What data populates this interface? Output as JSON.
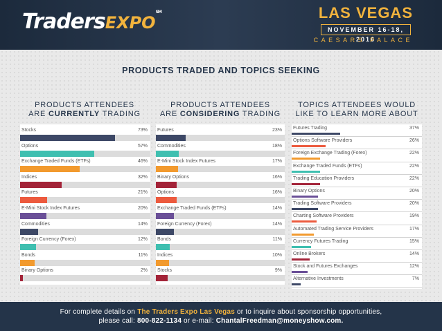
{
  "header": {
    "logo_part1": "Traders",
    "logo_part2": "EXPO",
    "logo_mark": "SM",
    "city": "LAS VEGAS",
    "dates": "NOVEMBER 16-18, 2016",
    "venue": "CAESARS PALACE"
  },
  "title": "PRODUCTS TRADED AND TOPICS SEEKING",
  "colors": {
    "navy": "#3d4866",
    "teal": "#3fbfb0",
    "orange": "#f29a2e",
    "red": "#a32338",
    "coral": "#ec5a3e",
    "purple": "#6a4f97"
  },
  "chart_data": [
    {
      "type": "bar",
      "orientation": "horizontal",
      "title_line1": "PRODUCTS ATTENDEES",
      "title_pre": "ARE ",
      "title_bold": "CURRENTLY",
      "title_post": " TRADING",
      "xlim": [
        0,
        100
      ],
      "categories": [
        "Stocks",
        "Options",
        "Exchange Traded Funds (ETFs)",
        "Indices",
        "Futures",
        "E-Mini Stock Index Futures",
        "Commodities",
        "Foreign Currency (Forex)",
        "Bonds",
        "Binary Options"
      ],
      "values": [
        73,
        57,
        46,
        32,
        21,
        20,
        14,
        12,
        11,
        2
      ],
      "labels": [
        "73%",
        "57%",
        "46%",
        "32%",
        "21%",
        "20%",
        "14%",
        "12%",
        "11%",
        "2%"
      ],
      "colors": [
        "#3d4866",
        "#3fbfb0",
        "#f29a2e",
        "#a32338",
        "#ec5a3e",
        "#6a4f97",
        "#3d4866",
        "#3fbfb0",
        "#f29a2e",
        "#a32338"
      ]
    },
    {
      "type": "bar",
      "orientation": "horizontal",
      "title_line1": "PRODUCTS ATTENDEES",
      "title_pre": "ARE ",
      "title_bold": "CONSIDERING",
      "title_post": " TRADING",
      "xlim": [
        0,
        100
      ],
      "categories": [
        "Futures",
        "Commodities",
        "E-Mini Stock Index Futures",
        "Binary Options",
        "Options",
        "Exchange Traded Funds (ETFs)",
        "Foreign Currency (Forex)",
        "Bonds",
        "Indices",
        "Stocks"
      ],
      "values": [
        23,
        18,
        17,
        16,
        16,
        14,
        14,
        11,
        10,
        9
      ],
      "labels": [
        "23%",
        "18%",
        "17%",
        "16%",
        "16%",
        "14%",
        "14%",
        "11%",
        "10%",
        "9%"
      ],
      "colors": [
        "#3d4866",
        "#3fbfb0",
        "#f29a2e",
        "#a32338",
        "#ec5a3e",
        "#6a4f97",
        "#3d4866",
        "#3fbfb0",
        "#f29a2e",
        "#a32338"
      ]
    },
    {
      "type": "bar",
      "orientation": "horizontal",
      "title_line1": "TOPICS ATTENDEES WOULD",
      "title_line2": "LIKE TO LEARN MORE ABOUT",
      "xlim": [
        0,
        100
      ],
      "categories": [
        "Futures Trading",
        "Options Software Providers",
        "Foreign Exchange Trading (Forex)",
        "Exchange Traded Funds (ETFs)",
        "Trading Education Providers",
        "Binary Options",
        "Trading Software Providers",
        "Charting Software Providers",
        "Automated Trading Service Providers",
        "Currency Futures Trading",
        "Online Brokers",
        "Stock and Futures Exchanges",
        "Alternative Investments"
      ],
      "values": [
        37,
        26,
        22,
        22,
        22,
        20,
        20,
        19,
        17,
        15,
        14,
        12,
        7
      ],
      "labels": [
        "37%",
        "26%",
        "22%",
        "22%",
        "22%",
        "20%",
        "20%",
        "19%",
        "17%",
        "15%",
        "14%",
        "12%",
        "7%"
      ],
      "colors": [
        "#3d4866",
        "#ec5a3e",
        "#f29a2e",
        "#3fbfb0",
        "#a32338",
        "#6a4f97",
        "#3d4866",
        "#ec5a3e",
        "#f29a2e",
        "#3fbfb0",
        "#a32338",
        "#6a4f97",
        "#3d4866"
      ]
    }
  ],
  "footer": {
    "line1_pre": "For complete details on ",
    "line1_highlight": "The Traders Expo Las Vegas",
    "line1_post": " or to inquire about sponsorship opportunities,",
    "line2_pre": "please call: ",
    "phone": "800-822-1134",
    "line2_mid": " or e-mail: ",
    "email": "ChantalFreedman@moneyshow.com."
  }
}
